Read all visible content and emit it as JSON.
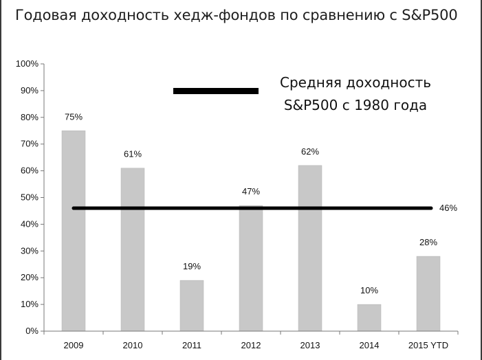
{
  "chart_data": {
    "type": "bar",
    "title": "Годовая доходность хедж-фондов по сравнению с S&P500",
    "categories": [
      "2009",
      "2010",
      "2011",
      "2012",
      "2013",
      "2014",
      "2015 YTD"
    ],
    "series": [
      {
        "values": [
          75,
          61,
          19,
          47,
          62,
          10,
          28
        ],
        "color": "#c8c8c8"
      }
    ],
    "data_labels": [
      "75%",
      "61%",
      "19%",
      "47%",
      "62%",
      "10%",
      "28%"
    ],
    "reference_line": {
      "value": 46,
      "label": "46%",
      "color": "#000000"
    },
    "legend": {
      "lines": [
        "Средняя доходность",
        "S&P500  с 1980 года"
      ],
      "placement": "top-right"
    },
    "y_ticks": [
      "0%",
      "10%",
      "20%",
      "30%",
      "40%",
      "50%",
      "60%",
      "70%",
      "80%",
      "90%",
      "100%"
    ],
    "ylim": [
      0,
      100
    ],
    "grid": false,
    "axis_color": "#777777"
  }
}
